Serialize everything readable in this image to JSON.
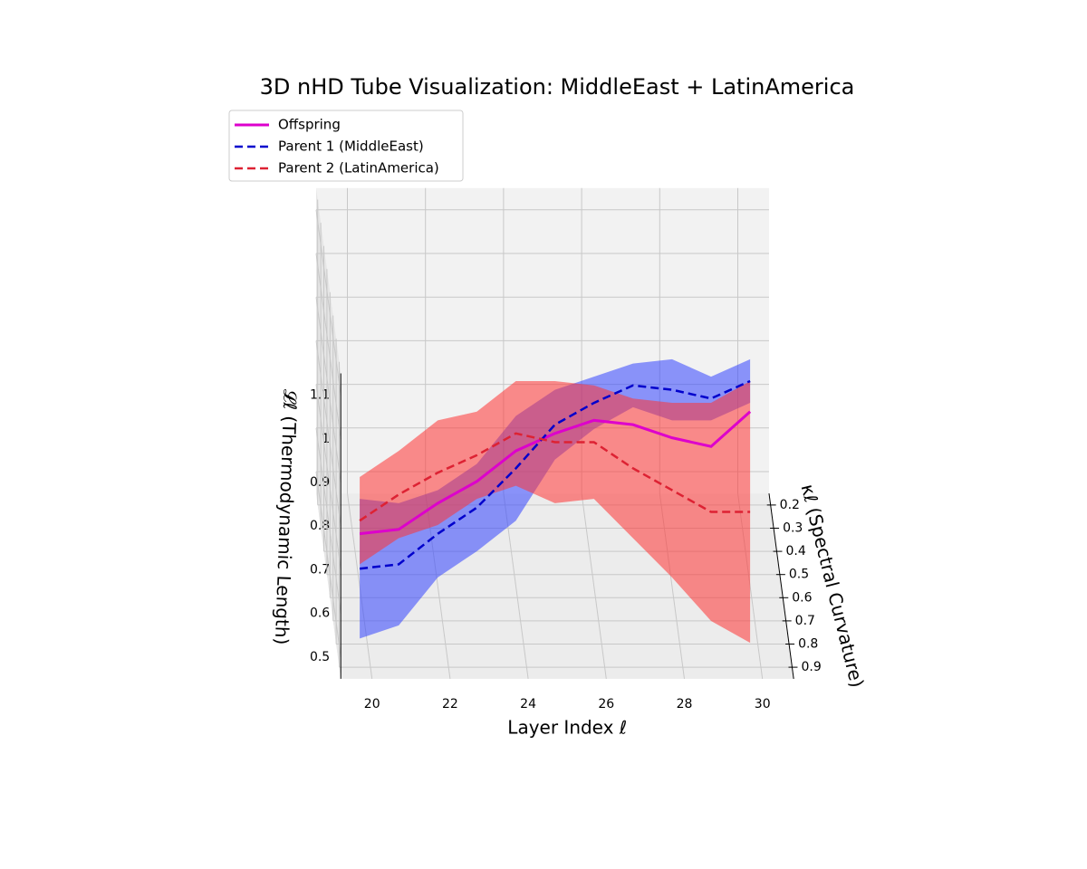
{
  "chart_data": {
    "type": "tube3d",
    "title": "3D nHD Tube Visualization: MiddleEast + LatinAmerica",
    "xlabel": "Layer Index ℓ",
    "ylabel": "κℓ (Spectral Curvature)",
    "zlabel": "𝓛ℓ (Thermodynamic Length)",
    "x": [
      20,
      21,
      22,
      23,
      24,
      25,
      26,
      27,
      28,
      29,
      30
    ],
    "xlim": [
      19.2,
      30.8
    ],
    "xticks": [
      20,
      22,
      24,
      26,
      28,
      30
    ],
    "ylim": [
      0.15,
      0.95
    ],
    "yticks": [
      0.2,
      0.3,
      0.4,
      0.5,
      0.6,
      0.7,
      0.8,
      0.9
    ],
    "zlim": [
      0.45,
      1.15
    ],
    "zticks": [
      0.5,
      0.6,
      0.7,
      0.8,
      0.9,
      1.0,
      1.1
    ],
    "grid": true,
    "legend": "upper left",
    "series": [
      {
        "name": "Offspring",
        "color": "#dd00cc",
        "style": "solid",
        "kappa": [
          0.55,
          0.55,
          0.55,
          0.55,
          0.55,
          0.55,
          0.55,
          0.55,
          0.55,
          0.55,
          0.55
        ],
        "values": [
          0.57,
          0.58,
          0.64,
          0.69,
          0.76,
          0.8,
          0.83,
          0.82,
          0.79,
          0.77,
          0.85
        ]
      },
      {
        "name": "Parent 1 (MiddleEast)",
        "color": "#0000cc",
        "style": "dashed",
        "tube_color": "#3344ff",
        "kappa": [
          0.55,
          0.55,
          0.55,
          0.55,
          0.55,
          0.55,
          0.55,
          0.55,
          0.55,
          0.55,
          0.55
        ],
        "values": [
          0.49,
          0.5,
          0.57,
          0.63,
          0.72,
          0.82,
          0.87,
          0.91,
          0.9,
          0.88,
          0.92
        ],
        "radius": [
          0.16,
          0.14,
          0.1,
          0.1,
          0.12,
          0.08,
          0.06,
          0.05,
          0.07,
          0.05,
          0.05
        ]
      },
      {
        "name": "Parent 2 (LatinAmerica)",
        "color": "#dd2233",
        "style": "dashed",
        "tube_color": "#ff3333",
        "kappa": [
          0.55,
          0.55,
          0.55,
          0.55,
          0.55,
          0.55,
          0.55,
          0.55,
          0.55,
          0.55,
          0.55
        ],
        "values": [
          0.6,
          0.66,
          0.71,
          0.75,
          0.8,
          0.78,
          0.78,
          0.72,
          0.67,
          0.62,
          0.62
        ],
        "radius": [
          0.1,
          0.1,
          0.12,
          0.1,
          0.12,
          0.14,
          0.13,
          0.16,
          0.2,
          0.25,
          0.3
        ]
      }
    ]
  }
}
